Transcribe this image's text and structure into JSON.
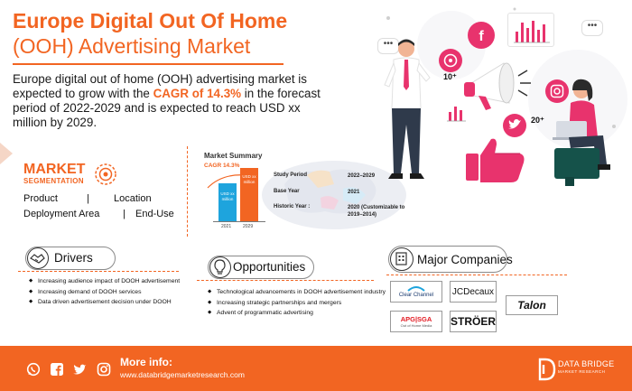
{
  "header": {
    "title_line1": "Europe Digital Out Of Home",
    "title_line2": "(OOH) Advertising Market"
  },
  "intro": {
    "before_cagr": "Europe digital out of home (OOH) advertising market is expected to grow with the ",
    "cagr": "CAGR of 14.3%",
    "after_cagr": " in the forecast period of 2022-2029 and is expected to reach USD xx million by 2029."
  },
  "segmentation": {
    "title": "MARKET",
    "subtitle": "SEGMENTATION",
    "row1_left": "Product",
    "row1_right": "Location",
    "row2_left": "Deployment Area",
    "row2_right": "End-Use",
    "separator": "|"
  },
  "market_summary": {
    "title": "Market Summary",
    "cagr": "CAGR 14.3%",
    "bar1_label": "USD xx million",
    "bar2_label": "USD xx million",
    "bar1_year": "2021",
    "bar2_year": "2029",
    "rows": [
      {
        "key": "Study Period",
        "value": "2022–2029"
      },
      {
        "key": "Base Year",
        "value": "2021"
      },
      {
        "key": "Historic Year :",
        "value": "2020 (Customizable to 2019–2014)"
      }
    ],
    "colors": {
      "bar1": "#1ea4dd",
      "bar2": "#f26522"
    }
  },
  "drivers": {
    "label": "Drivers",
    "items": [
      "Increasing audience impact of DOOH advertisement",
      "Increasing demand of DOOH services",
      "Data driven advertisement decision under DOOH"
    ]
  },
  "opportunities": {
    "label": "Opportunities",
    "items": [
      "Technological advancements in DOOH advertisement industry",
      "Increasing strategic partnerships and mergers",
      "Advent of programmatic advertising"
    ]
  },
  "major_companies": {
    "label": "Major Companies",
    "logos": {
      "clear_channel": "Clear Channel",
      "jcdecaux": "JCDecaux",
      "talon": "Talon",
      "apg_sga": "APG|SGA",
      "apg_sga_sub": "Out of Home Media",
      "stroer": "STRÖER"
    }
  },
  "illustration": {
    "like_count_left": "10⁺",
    "like_count_right": "20⁺",
    "icons": [
      "facebook-icon",
      "whatsapp-icon",
      "instagram-icon",
      "twitter-icon",
      "megaphone-icon",
      "thumbs-up-icon",
      "bar-chart-icon"
    ]
  },
  "footer": {
    "more_info": "More info:",
    "website": "www.databridgemarketresearch.com",
    "brand": "DATA BRIDGE",
    "brand_sub": "MARKET RESEARCH",
    "social_icons": [
      "whatsapp-icon",
      "facebook-icon",
      "twitter-icon",
      "instagram-icon"
    ]
  },
  "theme": {
    "accent": "#f26522",
    "blue": "#1ea4dd",
    "pink": "#e8336d"
  }
}
